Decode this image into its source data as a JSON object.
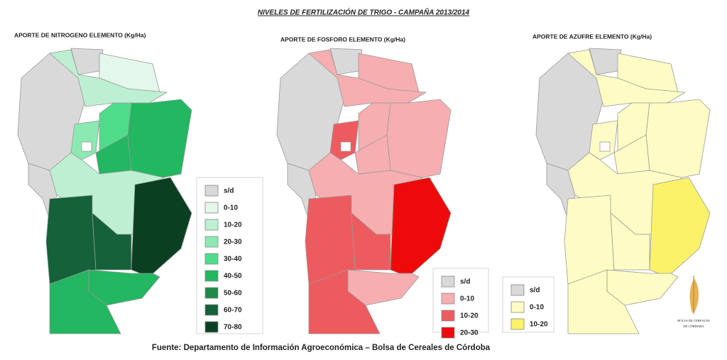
{
  "title": "NIVELES DE FERTILIZACIÓN DE TRIGO - CAMPAÑA 2013/2014",
  "maps": [
    {
      "title": "APORTE DE NITROGENO ELEMENTO (Kg/Ha)",
      "legend": [
        {
          "label": "s/d",
          "color": "#d9d9d9"
        },
        {
          "label": "0-10",
          "color": "#e4f7eb"
        },
        {
          "label": "10-20",
          "color": "#bdf0d2"
        },
        {
          "label": "20-30",
          "color": "#8be9b1"
        },
        {
          "label": "30-40",
          "color": "#4fdc8a"
        },
        {
          "label": "40-50",
          "color": "#22b760"
        },
        {
          "label": "50-60",
          "color": "#1e8a47"
        },
        {
          "label": "60-70",
          "color": "#14613a"
        },
        {
          "label": "70-80",
          "color": "#0b3f22"
        }
      ]
    },
    {
      "title": "APORTE DE FOSFORO ELEMENTO (Kg/Ha)",
      "legend": [
        {
          "label": "s/d",
          "color": "#d9d9d9"
        },
        {
          "label": "0-10",
          "color": "#f6aeb1"
        },
        {
          "label": "10-20",
          "color": "#ee5b5f"
        },
        {
          "label": "20-30",
          "color": "#ee0a0a"
        }
      ]
    },
    {
      "title": "APORTE DE AZUFRE ELEMENTO (Kg/Ha)",
      "legend": [
        {
          "label": "s/d",
          "color": "#d9d9d9"
        },
        {
          "label": "0-10",
          "color": "#fefcc4"
        },
        {
          "label": "10-20",
          "color": "#fbf26a"
        }
      ]
    }
  ],
  "source": "Fuente: Departamento de Información Agroeconómica – Bolsa de Cereales de Córdoba",
  "logo": {
    "line1": "BOLSA DE CEREALES",
    "line2": "DE CÓRDOBA"
  }
}
